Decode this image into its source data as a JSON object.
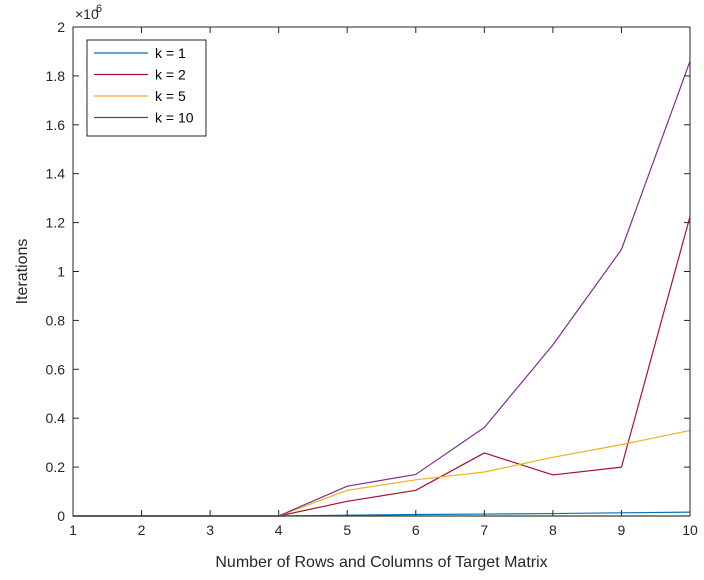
{
  "chart_data": {
    "type": "line",
    "xlabel": "Number of Rows and Columns of Target Matrix",
    "ylabel": "Iterations",
    "exponent": {
      "base": "×10",
      "power": "6"
    },
    "xlim": [
      1,
      10
    ],
    "ylim": [
      0,
      2000000
    ],
    "x_ticks": [
      1,
      2,
      3,
      4,
      5,
      6,
      7,
      8,
      9,
      10
    ],
    "y_ticks": [
      0,
      200000,
      400000,
      600000,
      800000,
      1000000,
      1200000,
      1400000,
      1600000,
      1800000,
      2000000
    ],
    "y_tick_labels": [
      "0",
      "0.2",
      "0.4",
      "0.6",
      "0.8",
      "1",
      "1.2",
      "1.4",
      "1.6",
      "1.8",
      "2"
    ],
    "grid": false,
    "legend_placement": "top-left",
    "x": [
      1,
      2,
      3,
      4,
      5,
      6,
      7,
      8,
      9,
      10
    ],
    "series": [
      {
        "name": "k = 1",
        "color": "#0072BD",
        "values": [
          0,
          0,
          0,
          0,
          3000,
          6000,
          8000,
          10000,
          13000,
          16000
        ]
      },
      {
        "name": "k = 2",
        "color": "#A2142F",
        "values": [
          0,
          0,
          0,
          0,
          60000,
          105000,
          258000,
          168000,
          200000,
          1225000
        ]
      },
      {
        "name": "k = 5",
        "color": "#EDB120",
        "values": [
          0,
          0,
          0,
          0,
          105000,
          148000,
          180000,
          240000,
          292000,
          350000
        ]
      },
      {
        "name": "k = 10",
        "color": "#7E2F8E",
        "values": [
          0,
          0,
          0,
          0,
          122000,
          170000,
          362000,
          700000,
          1090000,
          1860000
        ]
      },
      {
        "color": "#77AC30",
        "values": [
          0,
          0,
          0,
          0,
          0,
          0,
          0,
          0,
          0,
          0
        ]
      }
    ]
  }
}
